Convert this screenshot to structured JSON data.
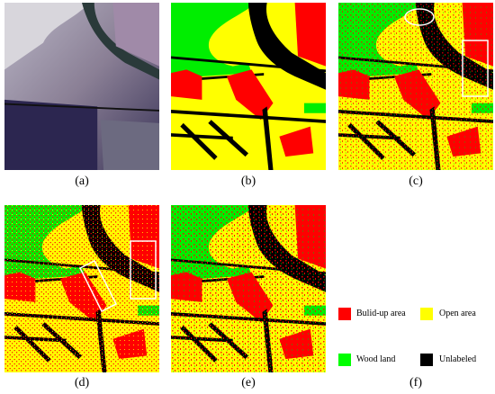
{
  "panels": [
    {
      "label": "(a)"
    },
    {
      "label": "(b)"
    },
    {
      "label": "(c)"
    },
    {
      "label": "(d)"
    },
    {
      "label": "(e)"
    },
    {
      "label": "(f)"
    }
  ],
  "legend": [
    {
      "label": "Bulid-up area",
      "color": "#ff0000"
    },
    {
      "label": "Open area",
      "color": "#ffff00"
    },
    {
      "label": "Wood land",
      "color": "#00ff00"
    },
    {
      "label": "Unlabeled",
      "color": "#000000"
    }
  ]
}
